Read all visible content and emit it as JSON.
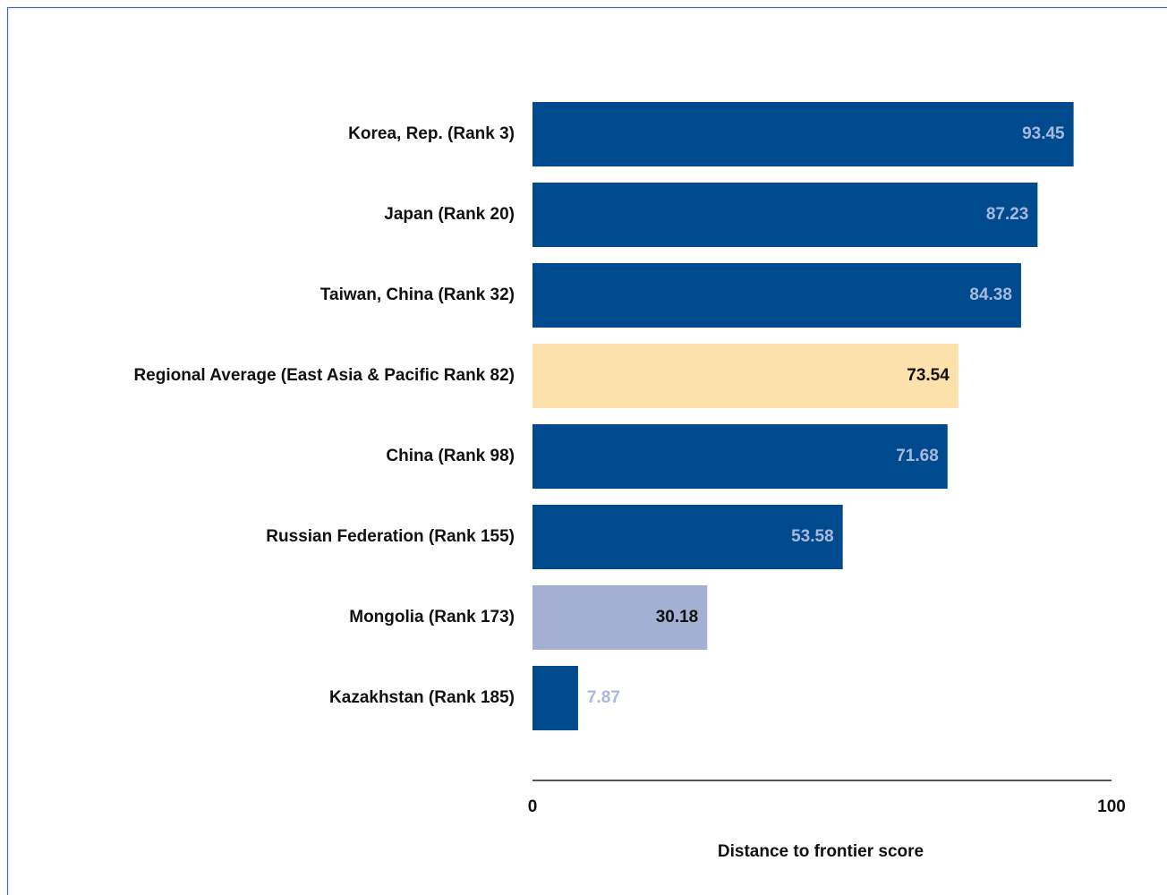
{
  "chart_data": {
    "type": "barh",
    "categories": [
      "Korea, Rep. (Rank 3)",
      "Japan (Rank 20)",
      "Taiwan, China (Rank 32)",
      "Regional Average (East Asia & Pacific Rank 82)",
      "China (Rank 98)",
      "Russian Federation (Rank 155)",
      "Mongolia (Rank 173)",
      "Kazakhstan (Rank 185)"
    ],
    "values": [
      93.45,
      87.23,
      84.38,
      73.54,
      71.68,
      53.58,
      30.18,
      7.87
    ],
    "colors": [
      "#004b8d",
      "#004b8d",
      "#004b8d",
      "#fde1ab",
      "#004b8d",
      "#004b8d",
      "#a4b0d3",
      "#004b8d"
    ],
    "xlabel": "Distance to frontier score",
    "xlim": [
      0,
      100
    ],
    "xticks": [
      0,
      100
    ],
    "grid": false
  }
}
